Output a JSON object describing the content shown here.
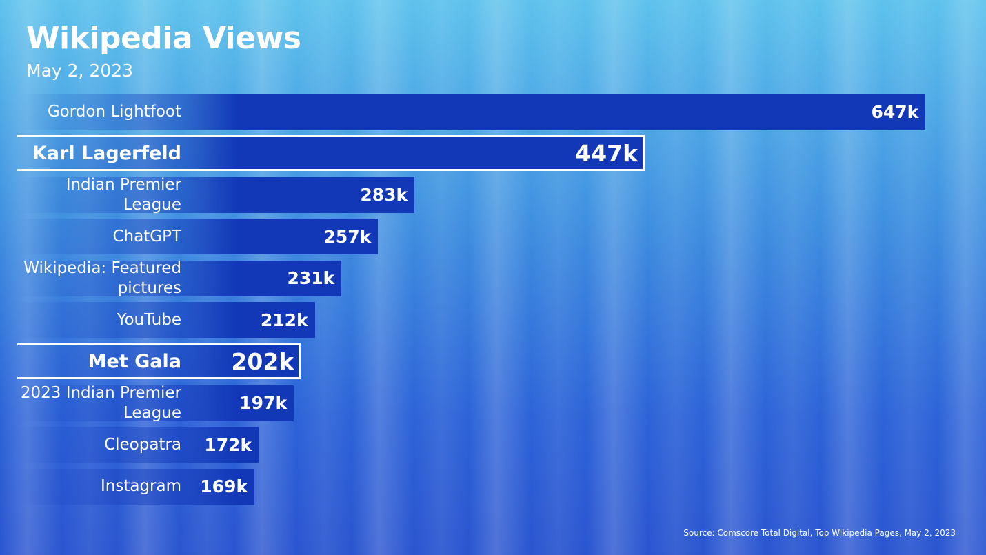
{
  "chart_data": {
    "type": "bar",
    "orientation": "horizontal",
    "title": "Wikipedia Views",
    "subtitle": "May 2, 2023",
    "categories": [
      "Gordon Lightfoot",
      "Karl Lagerfeld",
      "Indian Premier League",
      "ChatGPT",
      "Wikipedia: Featured pictures",
      "YouTube",
      "Met Gala",
      "2023 Indian Premier League",
      "Cleopatra",
      "Instagram"
    ],
    "values": [
      647,
      447,
      283,
      257,
      231,
      212,
      202,
      197,
      172,
      169
    ],
    "value_labels": [
      "647k",
      "447k",
      "283k",
      "257k",
      "231k",
      "212k",
      "202k",
      "197k",
      "172k",
      "169k"
    ],
    "highlight": [
      false,
      true,
      false,
      false,
      false,
      false,
      true,
      false,
      false,
      false
    ],
    "color": "#1238b8",
    "source": "Source: Comscore Total Digital, Top Wikipedia Pages, May 2, 2023"
  }
}
